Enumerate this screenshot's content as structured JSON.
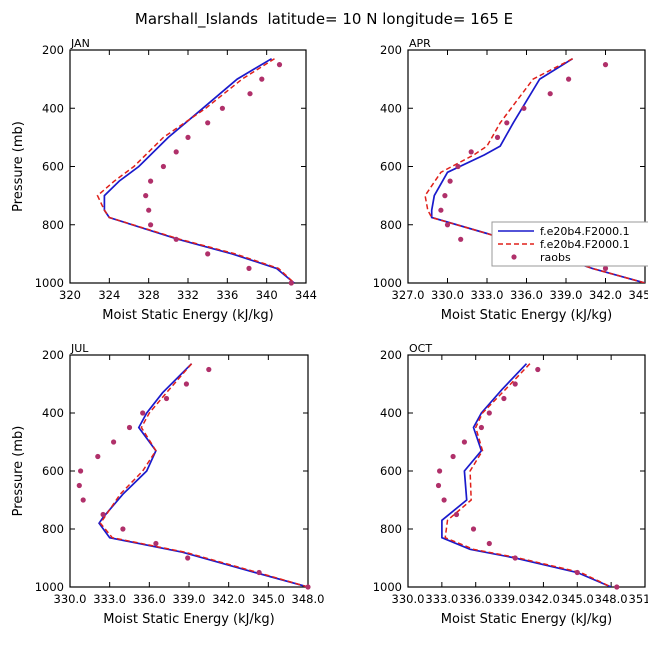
{
  "figure": {
    "title": "Marshall_Islands  latitude= 10 N longitude= 165 E"
  },
  "legend": {
    "panel": 1,
    "entries": [
      {
        "label": "f.e20b4.F2000.1",
        "style": "solid",
        "color": "#1a1acc"
      },
      {
        "label": "f.e20b4.F2000.1",
        "style": "dashed",
        "color": "#e0201a"
      },
      {
        "label": "raobs",
        "style": "dot",
        "color": "#b0306a"
      }
    ]
  },
  "colors": {
    "model_a": "#1a1acc",
    "model_b": "#e0201a",
    "obs": "#b0306a"
  },
  "chart_data": [
    {
      "type": "line",
      "panel_label": "JAN",
      "xlabel": "Moist Static Energy (kJ/kg)",
      "ylabel": "Pressure (mb)",
      "xlim": [
        320,
        344
      ],
      "ylim": [
        1000,
        200
      ],
      "xticks": [
        320,
        324,
        328,
        332,
        336,
        340,
        344
      ],
      "xtick_labels": [
        "320",
        "324",
        "328",
        "332",
        "336",
        "340",
        "344"
      ],
      "yticks": [
        200,
        400,
        600,
        800,
        1000
      ],
      "ytick_labels": [
        "200",
        "400",
        "600",
        "800",
        "1000"
      ],
      "series": [
        {
          "name": "f.e20b4.F2000.1 (solid)",
          "x": [
            340.5,
            337.0,
            333.5,
            330.0,
            327.0,
            325.0,
            323.5,
            323.5,
            324.0,
            331.0,
            336.5,
            341.0,
            342.8
          ],
          "y": [
            230,
            300,
            400,
            500,
            600,
            650,
            700,
            750,
            775,
            850,
            900,
            950,
            1000
          ]
        },
        {
          "name": "f.e20b4.F2000.1 (dashed)",
          "x": [
            340.8,
            337.5,
            333.8,
            329.5,
            326.5,
            324.5,
            322.8,
            323.5,
            324.0,
            331.2,
            336.8,
            341.2,
            342.8
          ],
          "y": [
            230,
            300,
            400,
            500,
            600,
            650,
            700,
            750,
            775,
            850,
            900,
            950,
            1000
          ]
        },
        {
          "name": "raobs",
          "x": [
            341.3,
            339.5,
            338.3,
            335.5,
            334.0,
            332.0,
            330.8,
            329.5,
            328.2,
            327.7,
            328.0,
            328.2,
            330.8,
            334.0,
            338.2,
            342.5
          ],
          "y": [
            250,
            300,
            350,
            400,
            450,
            500,
            550,
            600,
            650,
            700,
            750,
            800,
            850,
            900,
            950,
            1000
          ]
        }
      ]
    },
    {
      "type": "line",
      "panel_label": "APR",
      "xlabel": "Moist Static Energy (kJ/kg)",
      "ylabel": "",
      "xlim": [
        327,
        345
      ],
      "ylim": [
        1000,
        200
      ],
      "xticks": [
        327,
        330,
        333,
        336,
        339,
        342,
        345
      ],
      "xtick_labels": [
        "327.0",
        "330.0",
        "333.0",
        "336.0",
        "339.0",
        "342.0",
        "345.0"
      ],
      "yticks": [
        200,
        400,
        600,
        800,
        1000
      ],
      "ytick_labels": [
        "200",
        "400",
        "600",
        "800",
        "1000"
      ],
      "series": [
        {
          "name": "f.e20b4.F2000.1 (solid)",
          "x": [
            339.5,
            337.0,
            335.0,
            334.0,
            332.8,
            330.0,
            329.0,
            328.8,
            328.8,
            333.0,
            336.5,
            341.0,
            345.0
          ],
          "y": [
            230,
            300,
            450,
            530,
            560,
            620,
            700,
            750,
            775,
            830,
            880,
            950,
            1000
          ]
        },
        {
          "name": "f.e20b4.F2000.1 (dashed)",
          "x": [
            339.5,
            336.5,
            334.0,
            333.0,
            332.0,
            329.5,
            328.3,
            328.5,
            328.8,
            333.0,
            336.5,
            341.0,
            345.0
          ],
          "y": [
            230,
            300,
            450,
            530,
            560,
            620,
            700,
            750,
            775,
            830,
            880,
            950,
            1000
          ]
        },
        {
          "name": "raobs",
          "x": [
            342.0,
            339.2,
            337.8,
            335.8,
            334.5,
            333.8,
            331.8,
            330.8,
            330.2,
            329.8,
            329.5,
            330.0,
            331.0,
            334.0,
            338.3,
            342.0
          ],
          "y": [
            250,
            300,
            350,
            400,
            450,
            500,
            550,
            600,
            650,
            700,
            750,
            800,
            850,
            850,
            900,
            950
          ]
        }
      ]
    },
    {
      "type": "line",
      "panel_label": "JUL",
      "xlabel": "Moist Static Energy (kJ/kg)",
      "ylabel": "Pressure (mb)",
      "xlim": [
        330,
        348
      ],
      "ylim": [
        1000,
        200
      ],
      "xticks": [
        330,
        333,
        336,
        339,
        342,
        345,
        348
      ],
      "xtick_labels": [
        "330.0",
        "333.0",
        "336.0",
        "339.0",
        "342.0",
        "345.0",
        "348.0"
      ],
      "yticks": [
        200,
        400,
        600,
        800,
        1000
      ],
      "ytick_labels": [
        "200",
        "400",
        "600",
        "800",
        "1000"
      ],
      "series": [
        {
          "name": "f.e20b4.F2000.1 (solid)",
          "x": [
            339.2,
            337.0,
            335.8,
            335.2,
            336.5,
            335.8,
            334.0,
            332.5,
            332.2,
            333.0,
            338.5,
            344.0,
            348.0
          ],
          "y": [
            230,
            330,
            400,
            450,
            530,
            600,
            680,
            760,
            780,
            830,
            880,
            950,
            1000
          ]
        },
        {
          "name": "f.e20b4.F2000.1 (dashed)",
          "x": [
            339.2,
            337.3,
            336.0,
            335.4,
            336.5,
            335.5,
            333.8,
            332.6,
            332.3,
            333.2,
            338.7,
            344.2,
            348.0
          ],
          "y": [
            230,
            330,
            400,
            450,
            530,
            600,
            680,
            760,
            780,
            830,
            880,
            950,
            1000
          ]
        },
        {
          "name": "raobs",
          "x": [
            340.5,
            338.8,
            337.3,
            335.5,
            334.5,
            333.3,
            332.1,
            330.8,
            330.7,
            331.0,
            332.5,
            334.0,
            336.5,
            338.9,
            344.3,
            348.0
          ],
          "y": [
            250,
            300,
            350,
            400,
            450,
            500,
            550,
            600,
            650,
            700,
            750,
            800,
            850,
            900,
            950,
            1000
          ]
        }
      ]
    },
    {
      "type": "line",
      "panel_label": "OCT",
      "xlabel": "Moist Static Energy (kJ/kg)",
      "ylabel": "",
      "xlim": [
        330.0,
        351.0
      ],
      "ylim": [
        1000,
        200
      ],
      "xticks": [
        330,
        333,
        336,
        339,
        342,
        345,
        348,
        351
      ],
      "xtick_labels": [
        "330.0",
        "333.0",
        "336.0",
        "339.0",
        "342.0",
        "345.0",
        "348.0",
        "351.0"
      ],
      "yticks": [
        200,
        400,
        600,
        800,
        1000
      ],
      "ytick_labels": [
        "200",
        "400",
        "600",
        "800",
        "1000"
      ],
      "series": [
        {
          "name": "f.e20b4.F2000.1 (solid)",
          "x": [
            340.5,
            338.3,
            336.5,
            335.8,
            336.5,
            335.0,
            335.2,
            333.0,
            333.0,
            335.5,
            339.5,
            345.0,
            348.0
          ],
          "y": [
            230,
            320,
            400,
            450,
            530,
            600,
            700,
            770,
            830,
            870,
            900,
            950,
            1000
          ]
        },
        {
          "name": "f.e20b4.F2000.1 (dashed)",
          "x": [
            340.8,
            338.6,
            336.6,
            336.0,
            336.6,
            335.5,
            335.6,
            333.5,
            333.3,
            335.8,
            339.8,
            345.3,
            348.0
          ],
          "y": [
            230,
            320,
            400,
            450,
            530,
            600,
            700,
            770,
            830,
            870,
            900,
            950,
            1000
          ]
        },
        {
          "name": "raobs",
          "x": [
            341.5,
            339.5,
            338.5,
            337.2,
            336.5,
            335.0,
            334.0,
            332.8,
            332.7,
            333.2,
            334.3,
            335.8,
            337.2,
            339.5,
            345.0,
            348.5
          ],
          "y": [
            250,
            300,
            350,
            400,
            450,
            500,
            550,
            600,
            650,
            700,
            750,
            800,
            850,
            900,
            950,
            1000
          ]
        }
      ]
    }
  ]
}
